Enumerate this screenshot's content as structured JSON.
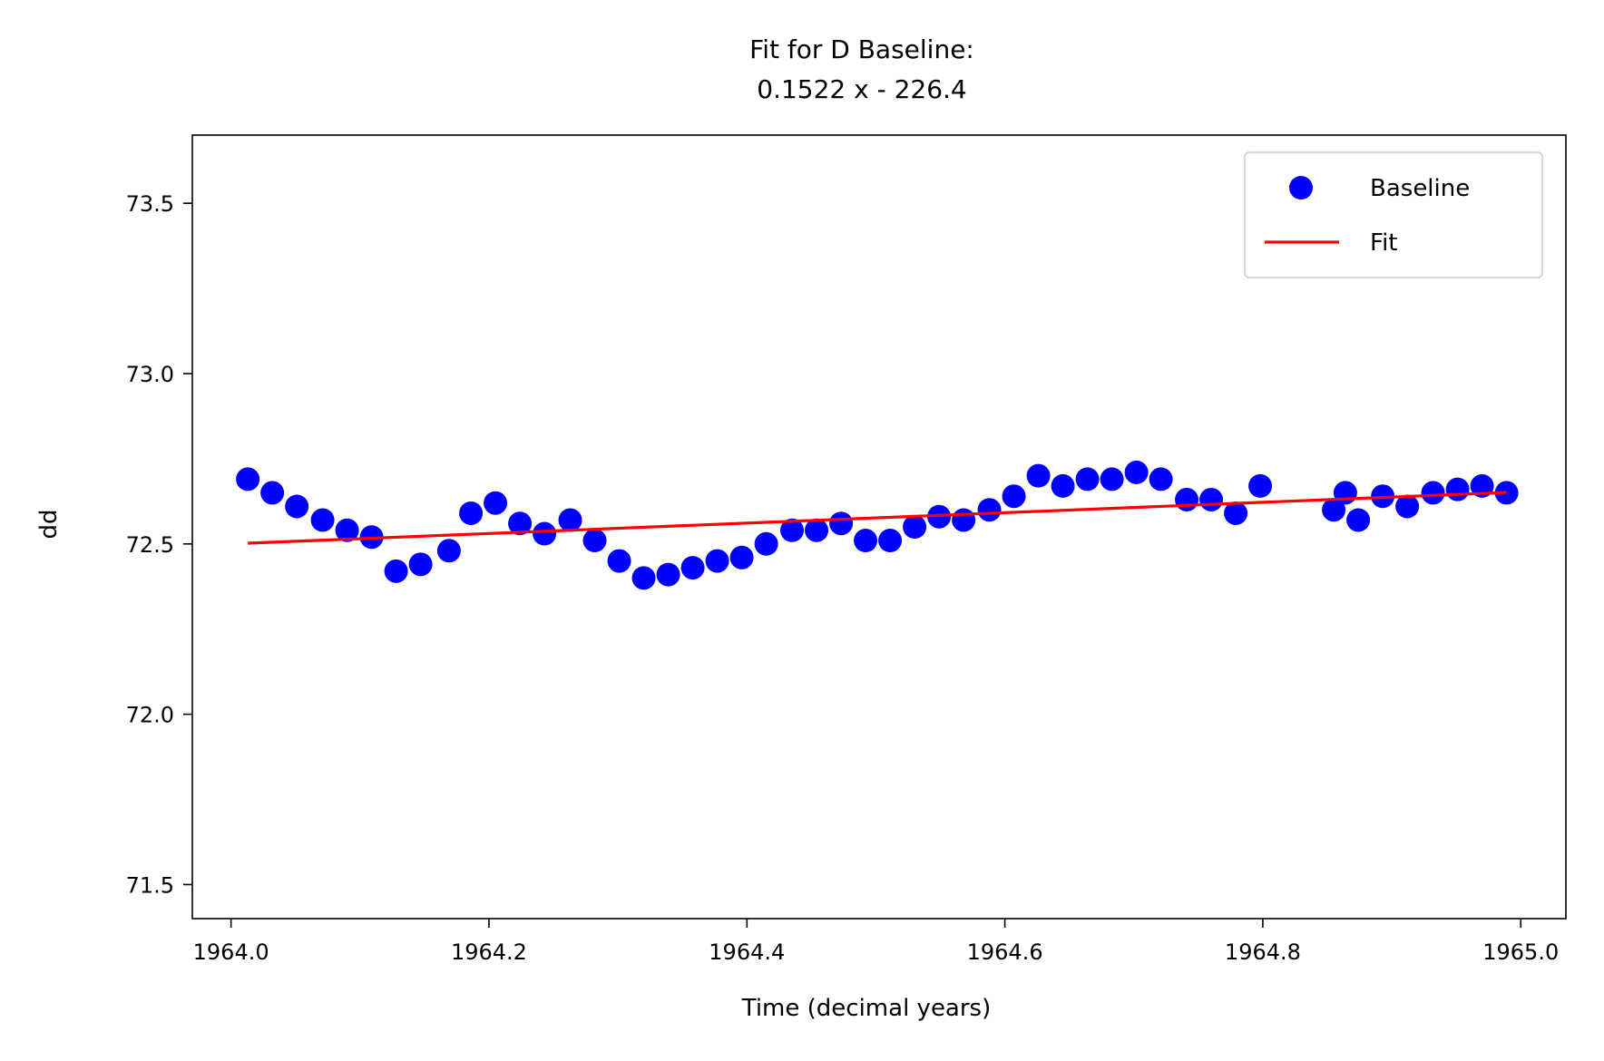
{
  "chart_data": {
    "type": "scatter",
    "title_line1": "Fit for D Baseline:",
    "title_line2": "0.1522 x - 226.4",
    "xlabel": "Time (decimal years)",
    "ylabel": "dd",
    "xlim": [
      1963.97,
      1965.035
    ],
    "ylim": [
      71.4,
      73.7
    ],
    "x_ticks": [
      1964.0,
      1964.2,
      1964.4,
      1964.6,
      1964.8,
      1965.0
    ],
    "x_tick_labels": [
      "1964.0",
      "1964.2",
      "1964.4",
      "1964.6",
      "1964.8",
      "1965.0"
    ],
    "y_ticks": [
      71.5,
      72.0,
      72.5,
      73.0,
      73.5
    ],
    "y_tick_labels": [
      "71.5",
      "72.0",
      "72.5",
      "73.0",
      "73.5"
    ],
    "grid": false,
    "legend_position": "top-right",
    "colors": {
      "points": "#0000ff",
      "fit": "#ff0000",
      "axes": "#000000"
    },
    "series": [
      {
        "name": "Baseline",
        "kind": "scatter",
        "x": [
          1964.013,
          1964.032,
          1964.051,
          1964.071,
          1964.09,
          1964.109,
          1964.128,
          1964.147,
          1964.169,
          1964.186,
          1964.205,
          1964.224,
          1964.243,
          1964.263,
          1964.282,
          1964.301,
          1964.32,
          1964.339,
          1964.358,
          1964.377,
          1964.396,
          1964.415,
          1964.435,
          1964.454,
          1964.473,
          1964.492,
          1964.511,
          1964.53,
          1964.549,
          1964.568,
          1964.588,
          1964.607,
          1964.626,
          1964.645,
          1964.664,
          1964.683,
          1964.702,
          1964.721,
          1964.741,
          1964.76,
          1964.779,
          1964.798,
          1964.855,
          1964.864,
          1964.874,
          1964.893,
          1964.912,
          1964.932,
          1964.951,
          1964.97,
          1964.989
        ],
        "y": [
          72.69,
          72.65,
          72.61,
          72.57,
          72.54,
          72.52,
          72.42,
          72.44,
          72.48,
          72.59,
          72.62,
          72.56,
          72.53,
          72.57,
          72.51,
          72.45,
          72.4,
          72.41,
          72.43,
          72.45,
          72.46,
          72.5,
          72.54,
          72.54,
          72.56,
          72.51,
          72.51,
          72.55,
          72.58,
          72.57,
          72.6,
          72.64,
          72.7,
          72.67,
          72.69,
          72.69,
          72.71,
          72.69,
          72.63,
          72.63,
          72.59,
          72.67,
          72.6,
          72.65,
          72.57,
          72.64,
          72.61,
          72.65,
          72.66,
          72.67,
          72.65
        ]
      },
      {
        "name": "Fit",
        "kind": "line",
        "x": [
          1964.013,
          1964.989
        ],
        "y": [
          72.502,
          72.651
        ]
      }
    ]
  }
}
